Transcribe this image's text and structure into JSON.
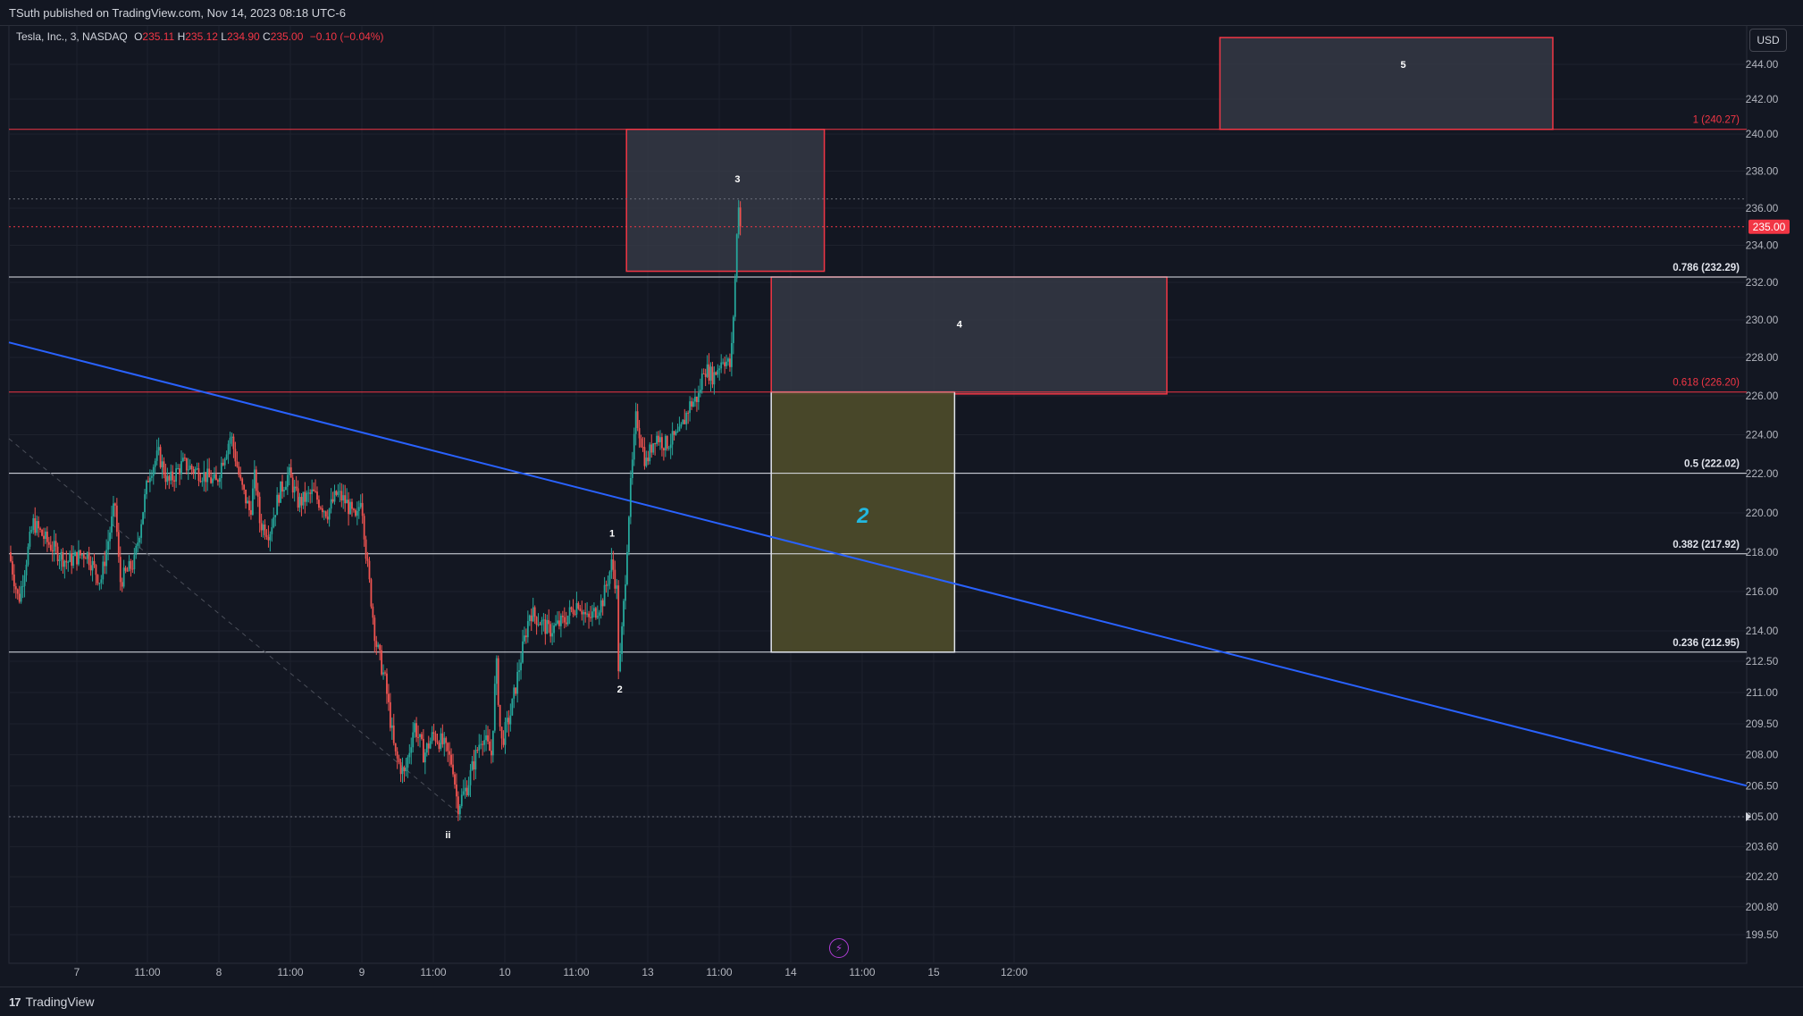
{
  "header": {
    "published": "TSuth published on TradingView.com, Nov 14, 2023 08:18 UTC-6"
  },
  "legend": {
    "symbol": "Tesla, Inc., 3, NASDAQ",
    "o_label": "O",
    "o_value": "235.11",
    "h_label": "H",
    "h_value": "235.12",
    "l_label": "L",
    "l_value": "234.90",
    "c_label": "C",
    "c_value": "235.00",
    "change": "−0.10 (−0.04%)"
  },
  "currency_button": "USD",
  "footer": {
    "brand": "TradingView",
    "brand_icon": "tradingview-logo-icon"
  },
  "lightning_icon": "lightning-icon",
  "colors": {
    "background": "#131722",
    "grid": "#1e222d",
    "up": "#26a69a",
    "down": "#ef5350",
    "trendline": "#2962ff",
    "fib_white": "#e0e3eb",
    "fib_red": "#f23645",
    "price_tag": "#f23645",
    "zone_gray": "#3a3d49",
    "zone_yellow": "#4b4a2a",
    "wave2_label": "#22b8e0"
  },
  "chart_data": {
    "type": "candlestick",
    "symbol": "TSLA",
    "interval": "3",
    "last_price": "235.00",
    "y_ticks": [
      "244.00",
      "242.00",
      "240.00",
      "238.00",
      "236.00",
      "234.00",
      "232.00",
      "230.00",
      "228.00",
      "226.00",
      "224.00",
      "222.00",
      "220.00",
      "218.00",
      "216.00",
      "214.00",
      "212.50",
      "211.00",
      "209.50",
      "208.00",
      "206.50",
      "205.00",
      "203.60",
      "202.20",
      "200.80",
      "199.50"
    ],
    "x_ticks": [
      "7",
      "11:00",
      "8",
      "11:00",
      "9",
      "11:00",
      "10",
      "11:00",
      "13",
      "11:00",
      "14",
      "11:00",
      "15",
      "12:00"
    ],
    "price_path": [
      [
        0.0,
        218.0
      ],
      [
        0.01,
        215.5
      ],
      [
        0.025,
        219.5
      ],
      [
        0.04,
        218.5
      ],
      [
        0.06,
        217.5
      ],
      [
        0.08,
        218.0
      ],
      [
        0.095,
        216.5
      ],
      [
        0.11,
        220.5
      ],
      [
        0.115,
        216.5
      ],
      [
        0.13,
        217.5
      ],
      [
        0.145,
        222.0
      ],
      [
        0.155,
        223.0
      ],
      [
        0.165,
        221.5
      ],
      [
        0.18,
        222.5
      ],
      [
        0.2,
        222.0
      ],
      [
        0.215,
        221.5
      ],
      [
        0.22,
        222.5
      ],
      [
        0.23,
        224.0
      ],
      [
        0.24,
        221.5
      ],
      [
        0.25,
        220.0
      ],
      [
        0.255,
        222.0
      ],
      [
        0.26,
        219.5
      ],
      [
        0.27,
        219.0
      ],
      [
        0.28,
        221.0
      ],
      [
        0.29,
        222.0
      ],
      [
        0.3,
        220.5
      ],
      [
        0.315,
        221.0
      ],
      [
        0.33,
        220.0
      ],
      [
        0.34,
        221.0
      ],
      [
        0.35,
        220.5
      ],
      [
        0.36,
        219.5
      ],
      [
        0.365,
        221.0
      ],
      [
        0.37,
        218.0
      ],
      [
        0.38,
        213.5
      ],
      [
        0.39,
        211.5
      ],
      [
        0.4,
        208.0
      ],
      [
        0.41,
        207.0
      ],
      [
        0.42,
        209.5
      ],
      [
        0.43,
        208.0
      ],
      [
        0.44,
        209.0
      ],
      [
        0.45,
        208.5
      ],
      [
        0.46,
        207.5
      ],
      [
        0.465,
        205.5
      ],
      [
        0.475,
        206.5
      ],
      [
        0.49,
        209.0
      ],
      [
        0.5,
        208.0
      ],
      [
        0.505,
        212.5
      ],
      [
        0.51,
        208.5
      ],
      [
        0.52,
        210.0
      ],
      [
        0.53,
        212.5
      ],
      [
        0.54,
        215.0
      ],
      [
        0.56,
        214.0
      ],
      [
        0.575,
        214.5
      ],
      [
        0.59,
        215.5
      ],
      [
        0.6,
        214.5
      ],
      [
        0.615,
        215.5
      ],
      [
        0.625,
        217.5
      ],
      [
        0.63,
        216.0
      ],
      [
        0.632,
        211.5
      ],
      [
        0.638,
        216.0
      ],
      [
        0.643,
        220.5
      ],
      [
        0.65,
        225.0
      ],
      [
        0.66,
        222.5
      ],
      [
        0.67,
        224.0
      ],
      [
        0.68,
        223.5
      ],
      [
        0.695,
        224.0
      ],
      [
        0.705,
        225.5
      ],
      [
        0.715,
        226.0
      ],
      [
        0.72,
        227.5
      ],
      [
        0.73,
        227.0
      ],
      [
        0.74,
        228.0
      ],
      [
        0.748,
        227.5
      ],
      [
        0.752,
        231.5
      ],
      [
        0.756,
        236.5
      ],
      [
        0.758,
        235.0
      ]
    ],
    "trendline": {
      "from": [
        0.0,
        228.8
      ],
      "to": [
        1.0,
        206.5
      ]
    },
    "fib_levels": [
      {
        "level": "1",
        "price": 240.27,
        "label": "1 (240.27)",
        "color": "red"
      },
      {
        "level": "0.786",
        "price": 232.29,
        "label": "0.786 (232.29)",
        "color": "white"
      },
      {
        "level": "0.618",
        "price": 226.2,
        "label": "0.618 (226.20)",
        "color": "red"
      },
      {
        "level": "0.5",
        "price": 222.02,
        "label": "0.5 (222.02)",
        "color": "white"
      },
      {
        "level": "0.382",
        "price": 217.92,
        "label": "0.382 (217.92)",
        "color": "white"
      },
      {
        "level": "0.236",
        "price": 212.95,
        "label": "0.236 (212.95)",
        "color": "white"
      }
    ],
    "wave_labels": [
      {
        "text": "ii",
        "t": 0.455,
        "price": 204.0
      },
      {
        "text": "1",
        "t": 0.625,
        "price": 218.8
      },
      {
        "text": "2",
        "t": 0.633,
        "price": 211.0
      },
      {
        "text": "3",
        "t": 0.755,
        "price": 237.4
      },
      {
        "text": "4",
        "t": 0.985,
        "price": 229.6
      },
      {
        "text": "5",
        "t": 1.445,
        "price": 243.8
      },
      {
        "text": "2",
        "t": 0.885,
        "price": 219.5,
        "big": true
      }
    ],
    "zones": [
      {
        "name": "zone-3",
        "t0": 0.64,
        "t1": 0.845,
        "top": 240.27,
        "bottom": 232.6,
        "fill": "gray",
        "border": "red"
      },
      {
        "name": "zone-4",
        "t0": 0.79,
        "t1": 1.2,
        "top": 232.29,
        "bottom": 226.1,
        "fill": "gray",
        "border": "red"
      },
      {
        "name": "zone-5",
        "t0": 1.255,
        "t1": 1.6,
        "top": 245.5,
        "bottom": 240.27,
        "fill": "gray",
        "border": "red"
      },
      {
        "name": "zone-wave2",
        "t0": 0.79,
        "t1": 0.98,
        "top": 226.2,
        "bottom": 212.95,
        "fill": "yellow",
        "border": "white"
      }
    ]
  }
}
